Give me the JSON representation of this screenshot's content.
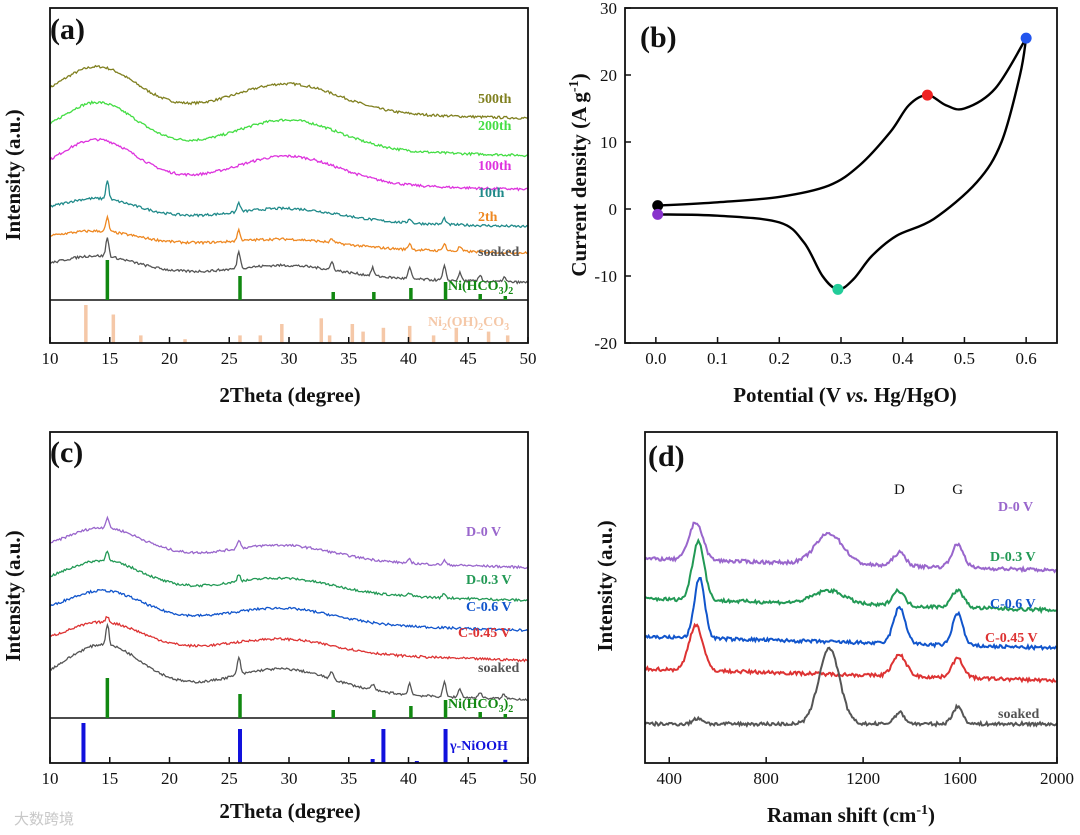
{
  "watermark": "大数跨境",
  "colors": {
    "500th": "#808020",
    "200th": "#44dd44",
    "100th": "#dd33dd",
    "10th": "#208a8a",
    "2th": "#ee8822",
    "soaked": "#555555",
    "nihco3": "#118811",
    "ni2oh": "#f5c8a8",
    "nooh": "#1111dd",
    "D0": "#9966cc",
    "D03": "#229955",
    "C06": "#1155cc",
    "C045": "#dd3333"
  },
  "chart_data": [
    {
      "panel": "a",
      "type": "line",
      "panel_label": "(a)",
      "xlabel": "2Theta (degree)",
      "ylabel": "Intensity (a.u.)",
      "xlim": [
        10,
        50
      ],
      "xticks": [
        "10",
        "15",
        "20",
        "25",
        "30",
        "35",
        "40",
        "45",
        "50"
      ],
      "series": [
        {
          "name": "500th",
          "label": "500th",
          "offset": 6.2,
          "peaks": []
        },
        {
          "name": "200th",
          "label": "200th",
          "offset": 5.0,
          "peaks": []
        },
        {
          "name": "100th",
          "label": "100th",
          "offset": 3.9,
          "peaks": []
        },
        {
          "name": "10th",
          "label": "10th",
          "offset": 2.7,
          "peaks": [
            [
              14.8,
              0.6
            ],
            [
              25.8,
              0.3
            ],
            [
              40.1,
              0.15
            ],
            [
              43.0,
              0.2
            ]
          ]
        },
        {
          "name": "2th",
          "label": "2th",
          "offset": 1.85,
          "peaks": [
            [
              14.8,
              0.45
            ],
            [
              25.8,
              0.35
            ],
            [
              33.6,
              0.12
            ],
            [
              40.1,
              0.2
            ],
            [
              43.0,
              0.25
            ],
            [
              44.3,
              0.15
            ]
          ]
        },
        {
          "name": "soaked",
          "label": "soaked",
          "offset": 0.9,
          "peaks": [
            [
              14.8,
              0.6
            ],
            [
              25.8,
              0.55
            ],
            [
              33.6,
              0.25
            ],
            [
              37.0,
              0.25
            ],
            [
              40.1,
              0.35
            ],
            [
              43.0,
              0.45
            ],
            [
              44.3,
              0.25
            ],
            [
              46.0,
              0.2
            ],
            [
              48.0,
              0.15
            ]
          ]
        }
      ],
      "reference_1": {
        "name": "Ni(HCO3)2",
        "label_main": "Ni(HCO",
        "label_sub": "3",
        "label_end": ")2",
        "sticks": [
          [
            14.8,
            1.0
          ],
          [
            25.9,
            0.6
          ],
          [
            33.7,
            0.2
          ],
          [
            37.1,
            0.2
          ],
          [
            40.2,
            0.3
          ],
          [
            43.1,
            0.45
          ],
          [
            46.0,
            0.15
          ],
          [
            48.1,
            0.1
          ]
        ]
      },
      "reference_2": {
        "name": "Ni2(OH)2CO3",
        "text": "Ni2(OH)2CO3",
        "sticks": [
          [
            13.0,
            1.0
          ],
          [
            15.3,
            0.75
          ],
          [
            17.6,
            0.2
          ],
          [
            21.3,
            0.1
          ],
          [
            25.9,
            0.2
          ],
          [
            27.6,
            0.2
          ],
          [
            29.4,
            0.5
          ],
          [
            32.7,
            0.65
          ],
          [
            33.4,
            0.2
          ],
          [
            35.3,
            0.5
          ],
          [
            36.2,
            0.3
          ],
          [
            37.9,
            0.4
          ],
          [
            40.1,
            0.45
          ],
          [
            42.1,
            0.2
          ],
          [
            44.0,
            0.4
          ],
          [
            46.7,
            0.3
          ],
          [
            48.3,
            0.2
          ]
        ]
      }
    },
    {
      "panel": "b",
      "type": "line",
      "panel_label": "(b)",
      "xlabel": "Potential (V vs. Hg/HgO)",
      "ylabel": "Current density (A g-1)",
      "xlim": [
        -0.05,
        0.65
      ],
      "ylim": [
        -20,
        30
      ],
      "xticks": [
        "0.0",
        "0.1",
        "0.2",
        "0.3",
        "0.4",
        "0.5",
        "0.6"
      ],
      "yticks": [
        "-20",
        "-10",
        "0",
        "10",
        "20",
        "30"
      ],
      "cv_upper": [
        [
          0.003,
          0.5
        ],
        [
          0.1,
          1.0
        ],
        [
          0.2,
          1.8
        ],
        [
          0.28,
          3.5
        ],
        [
          0.33,
          6.5
        ],
        [
          0.38,
          11.5
        ],
        [
          0.41,
          15.5
        ],
        [
          0.44,
          17.0
        ],
        [
          0.47,
          15.5
        ],
        [
          0.5,
          15.0
        ],
        [
          0.55,
          18.0
        ],
        [
          0.6,
          25.5
        ]
      ],
      "cv_lower": [
        [
          0.6,
          25.5
        ],
        [
          0.59,
          20.0
        ],
        [
          0.56,
          10.0
        ],
        [
          0.52,
          4.0
        ],
        [
          0.45,
          -1.5
        ],
        [
          0.39,
          -4.0
        ],
        [
          0.35,
          -7.0
        ],
        [
          0.32,
          -10.5
        ],
        [
          0.295,
          -12.0
        ],
        [
          0.27,
          -10.0
        ],
        [
          0.24,
          -5.0
        ],
        [
          0.2,
          -2.0
        ],
        [
          0.1,
          -1.0
        ],
        [
          0.003,
          -0.8
        ]
      ],
      "markers": [
        {
          "x": 0.003,
          "y": 0.5,
          "color": "#000000"
        },
        {
          "x": 0.003,
          "y": -0.8,
          "color": "#8833cc"
        },
        {
          "x": 0.44,
          "y": 17.0,
          "color": "#ee2222"
        },
        {
          "x": 0.6,
          "y": 25.5,
          "color": "#2255ee"
        },
        {
          "x": 0.295,
          "y": -12.0,
          "color": "#22cc99"
        }
      ]
    },
    {
      "panel": "c",
      "type": "line",
      "panel_label": "(c)",
      "xlabel": "2Theta (degree)",
      "ylabel": "Intensity (a.u.)",
      "xlim": [
        10,
        50
      ],
      "xticks": [
        "10",
        "15",
        "20",
        "25",
        "30",
        "35",
        "40",
        "45",
        "50"
      ],
      "series": [
        {
          "name": "D-0 V",
          "label": "D-0 V",
          "offset": 5.3,
          "peaks": [
            [
              14.8,
              0.35
            ],
            [
              25.8,
              0.3
            ],
            [
              40.1,
              0.12
            ],
            [
              43.0,
              0.15
            ]
          ]
        },
        {
          "name": "D-0.3 V",
          "label": "D-0.3 V",
          "offset": 4.2,
          "peaks": [
            [
              14.8,
              0.35
            ],
            [
              25.8,
              0.25
            ],
            [
              40.1,
              0.1
            ],
            [
              43.0,
              0.15
            ]
          ]
        },
        {
          "name": "C-0.6 V",
          "label": "C-0.6 V",
          "offset": 3.2,
          "peaks": []
        },
        {
          "name": "C-0.45 V",
          "label": "C-0.45 V",
          "offset": 2.2,
          "peaks": [
            [
              14.8,
              0.2
            ]
          ]
        },
        {
          "name": "soaked",
          "label": "soaked",
          "offset": 0.9,
          "peaks": [
            [
              14.8,
              0.7
            ],
            [
              25.8,
              0.6
            ],
            [
              33.6,
              0.25
            ],
            [
              37.0,
              0.2
            ],
            [
              40.1,
              0.4
            ],
            [
              43.0,
              0.5
            ],
            [
              44.3,
              0.3
            ],
            [
              46.0,
              0.2
            ],
            [
              48.0,
              0.15
            ]
          ]
        }
      ],
      "reference_1": {
        "name": "Ni(HCO3)2",
        "label_main": "Ni(HCO",
        "label_sub": "3",
        "label_end": ")2",
        "sticks": [
          [
            14.8,
            1.0
          ],
          [
            25.9,
            0.6
          ],
          [
            33.7,
            0.2
          ],
          [
            37.1,
            0.2
          ],
          [
            40.2,
            0.3
          ],
          [
            43.1,
            0.45
          ],
          [
            46.0,
            0.15
          ],
          [
            48.1,
            0.1
          ]
        ]
      },
      "reference_2": {
        "name": "γ-NiOOH",
        "text": "γ-NiOOH",
        "sticks": [
          [
            12.8,
            1.0
          ],
          [
            25.9,
            0.85
          ],
          [
            37.0,
            0.1
          ],
          [
            37.9,
            0.85
          ],
          [
            40.7,
            0.05
          ],
          [
            43.1,
            0.85
          ],
          [
            48.1,
            0.08
          ]
        ]
      }
    },
    {
      "panel": "d",
      "type": "line",
      "panel_label": "(d)",
      "xlabel": "Raman shift (cm-1)",
      "ylabel": "Intensity (a.u.)",
      "xlim": [
        300,
        2000
      ],
      "xticks": [
        "400",
        "800",
        "1200",
        "1600",
        "2000"
      ],
      "annotations": [
        {
          "text": "D",
          "x": 1350
        },
        {
          "text": "G",
          "x": 1590
        }
      ],
      "series": [
        {
          "name": "D-0 V",
          "label": "D-0 V",
          "offset": 4.35,
          "peaks": [
            [
              510,
              1.0,
              40
            ],
            [
              1060,
              0.8,
              80
            ],
            [
              1350,
              0.35,
              35
            ],
            [
              1590,
              0.6,
              35
            ]
          ]
        },
        {
          "name": "D-0.3 V",
          "label": "D-0.3 V",
          "offset": 3.3,
          "peaks": [
            [
              520,
              1.55,
              35
            ],
            [
              1060,
              0.35,
              90
            ],
            [
              1345,
              0.4,
              35
            ],
            [
              1590,
              0.45,
              35
            ]
          ]
        },
        {
          "name": "C-0.6 V",
          "label": "C-0.6 V",
          "offset": 2.3,
          "peaks": [
            [
              525,
              1.6,
              30
            ],
            [
              1350,
              0.95,
              35
            ],
            [
              1590,
              0.85,
              30
            ]
          ]
        },
        {
          "name": "C-0.45 V",
          "label": "C-0.45 V",
          "offset": 1.45,
          "peaks": [
            [
              510,
              1.2,
              40
            ],
            [
              1350,
              0.55,
              40
            ],
            [
              1590,
              0.5,
              35
            ]
          ]
        },
        {
          "name": "soaked",
          "label": "soaked",
          "offset": 0.0,
          "peaks": [
            [
              520,
              0.15,
              30
            ],
            [
              1060,
              2.0,
              60
            ],
            [
              1350,
              0.3,
              30
            ],
            [
              1590,
              0.45,
              30
            ]
          ]
        }
      ]
    }
  ]
}
